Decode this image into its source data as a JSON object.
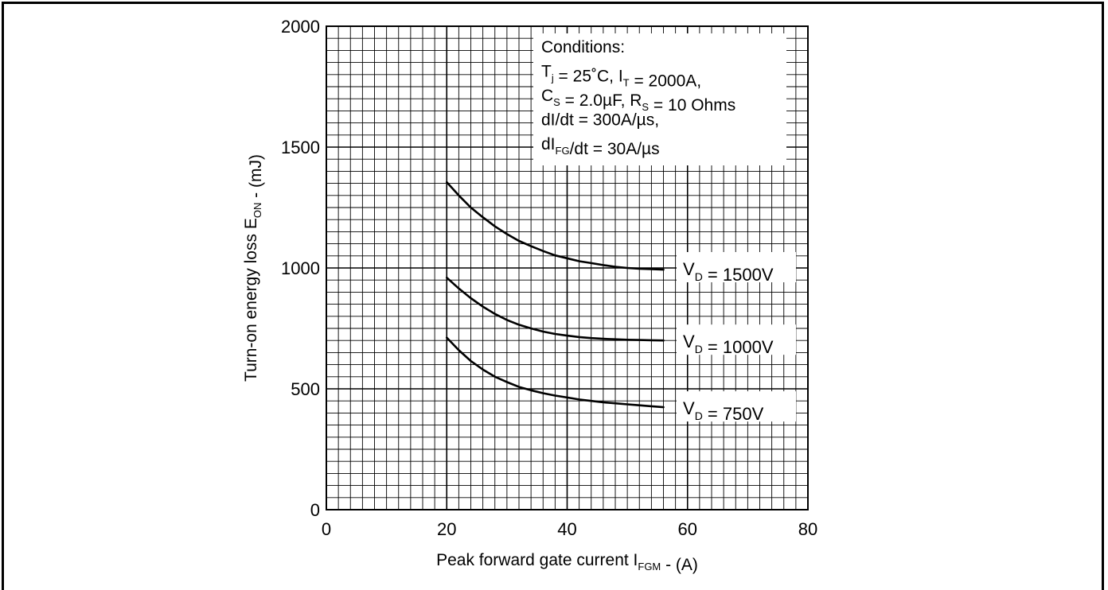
{
  "chart_data": {
    "type": "line",
    "xlabel": {
      "text": "Peak forward gate current I",
      "sub": "FGM",
      "tail": " - (A)"
    },
    "ylabel": {
      "text": "Turn-on energy loss E",
      "sub": "ON",
      "tail": " - (mJ)"
    },
    "xlim": [
      0,
      80
    ],
    "ylim": [
      0,
      2000
    ],
    "x_ticks": [
      0,
      20,
      40,
      60,
      80
    ],
    "y_ticks": [
      0,
      500,
      1000,
      1500,
      2000
    ],
    "grid": true,
    "grid_minor_x": 2,
    "grid_minor_y": 50,
    "line_color": "#000000",
    "conditions": [
      [
        {
          "t": "Conditions:"
        }
      ],
      [
        {
          "t": "T"
        },
        {
          "t": "j",
          "sub": true
        },
        {
          "t": " = 25˚C, I"
        },
        {
          "t": "T",
          "sub": true
        },
        {
          "t": " = 2000A,"
        }
      ],
      [
        {
          "t": "C"
        },
        {
          "t": "S",
          "sub": true
        },
        {
          "t": " = 2.0µF, R"
        },
        {
          "t": "S",
          "sub": true
        },
        {
          "t": " = 10 Ohms"
        }
      ],
      [
        {
          "t": "dI/dt = 300A/µs,"
        }
      ],
      [
        {
          "t": "dI"
        },
        {
          "t": "FG",
          "sub": true
        },
        {
          "t": "/dt = 30A/µs"
        }
      ]
    ],
    "series": [
      {
        "name": "V_D = 1500V",
        "label": [
          {
            "t": "V"
          },
          {
            "t": "D",
            "sub": true
          },
          {
            "t": " = 1500V"
          }
        ],
        "x": [
          20,
          22,
          24,
          26,
          28,
          30,
          32,
          34,
          36,
          38,
          40,
          42,
          44,
          46,
          48,
          50,
          52,
          54,
          56
        ],
        "y": [
          1355,
          1300,
          1250,
          1210,
          1172,
          1140,
          1112,
          1090,
          1070,
          1052,
          1040,
          1028,
          1020,
          1012,
          1005,
          1000,
          997,
          995,
          993
        ]
      },
      {
        "name": "V_D = 1000V",
        "label": [
          {
            "t": "V"
          },
          {
            "t": "D",
            "sub": true
          },
          {
            "t": " = 1000V"
          }
        ],
        "x": [
          20,
          22,
          24,
          26,
          28,
          30,
          32,
          34,
          36,
          38,
          40,
          42,
          44,
          46,
          48,
          50,
          52,
          54,
          56
        ],
        "y": [
          960,
          915,
          875,
          840,
          810,
          785,
          765,
          750,
          737,
          727,
          720,
          714,
          710,
          707,
          705,
          703,
          702,
          701,
          700
        ]
      },
      {
        "name": "V_D = 750V",
        "label": [
          {
            "t": "V"
          },
          {
            "t": "D",
            "sub": true
          },
          {
            "t": " = 750V"
          }
        ],
        "x": [
          20,
          22,
          24,
          26,
          28,
          30,
          32,
          34,
          36,
          38,
          40,
          42,
          44,
          46,
          48,
          50,
          52,
          54,
          56
        ],
        "y": [
          712,
          660,
          615,
          580,
          550,
          528,
          508,
          494,
          482,
          472,
          464,
          456,
          450,
          444,
          440,
          436,
          432,
          428,
          424
        ]
      }
    ]
  }
}
